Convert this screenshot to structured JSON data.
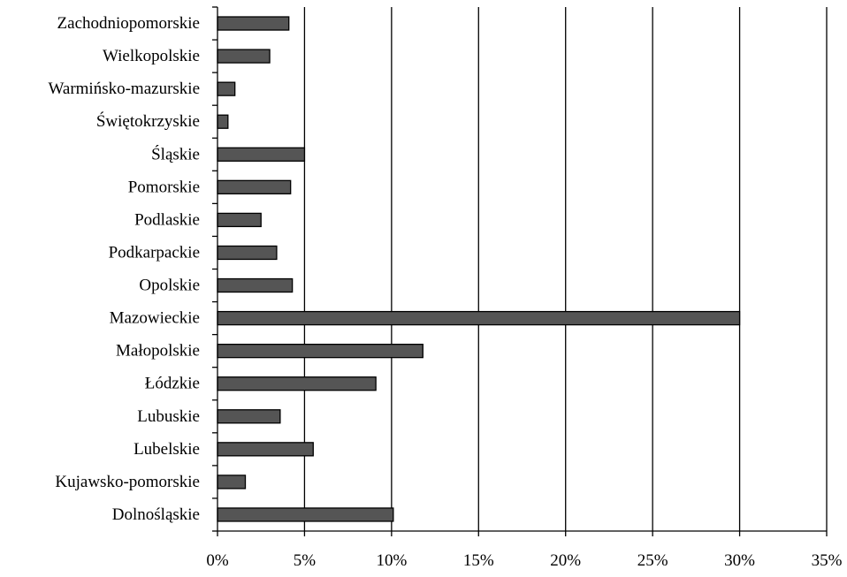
{
  "chart_data": {
    "type": "bar",
    "orientation": "horizontal",
    "categories": [
      "Dolnośląskie",
      "Kujawsko-pomorskie",
      "Lubelskie",
      "Lubuskie",
      "Łódzkie",
      "Małopolskie",
      "Mazowieckie",
      "Opolskie",
      "Podkarpackie",
      "Podlaskie",
      "Pomorskie",
      "Śląskie",
      "Świętokrzyskie",
      "Warmińsko-mazurskie",
      "Wielkopolskie",
      "Zachodniopomorskie"
    ],
    "values": [
      10.1,
      1.6,
      5.5,
      3.6,
      9.1,
      11.8,
      30.0,
      4.3,
      3.4,
      2.5,
      4.2,
      5.0,
      0.6,
      1.0,
      3.0,
      4.1
    ],
    "xlim": [
      0,
      35
    ],
    "xticks": [
      0,
      5,
      10,
      15,
      20,
      25,
      30,
      35
    ],
    "xtick_labels": [
      "0%",
      "5%",
      "10%",
      "15%",
      "20%",
      "25%",
      "30%",
      "35%"
    ],
    "grid": "vertical",
    "bar_color": "#555555",
    "title": "",
    "xlabel": "",
    "ylabel": ""
  }
}
